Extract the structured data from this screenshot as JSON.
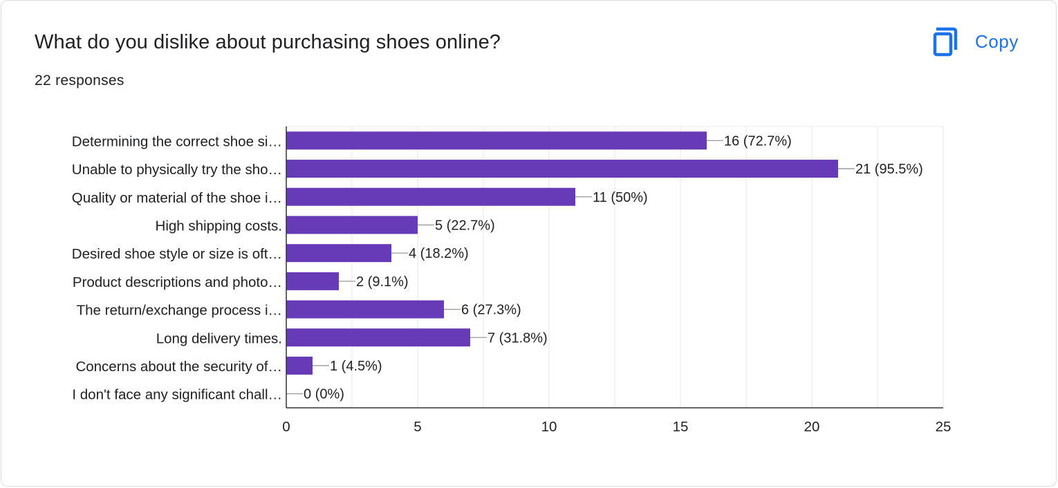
{
  "card": {
    "title": "What do you dislike about purchasing shoes online?",
    "responses": "22 responses",
    "copy_label": "Copy",
    "copy_icon": "content-copy-icon"
  },
  "colors": {
    "bar": "#673ab7",
    "accent": "#1a73e8",
    "text": "#202124",
    "grid": "#ebebeb",
    "axis": "#333333",
    "connector": "#999999"
  },
  "chart_data": {
    "type": "bar",
    "orientation": "horizontal",
    "categories": [
      "Determining the correct shoe si…",
      "Unable to physically try the sho…",
      "Quality or material of the shoe i…",
      "High shipping costs.",
      "Desired shoe style or size is oft…",
      "Product descriptions and photo…",
      "The return/exchange process i…",
      "Long delivery times.",
      "Concerns about the security of…",
      "I don't face any significant chall…"
    ],
    "values": [
      16,
      21,
      11,
      5,
      4,
      2,
      6,
      7,
      1,
      0
    ],
    "value_labels": [
      "16 (72.7%)",
      "21 (95.5%)",
      "11 (50%)",
      "5 (22.7%)",
      "4 (18.2%)",
      "2 (9.1%)",
      "6 (27.3%)",
      "7 (31.8%)",
      "1 (4.5%)",
      "0 (0%)"
    ],
    "xlim": [
      0,
      25
    ],
    "xticks": [
      0,
      5,
      10,
      15,
      20,
      25
    ],
    "minor_gridlines": true,
    "legend": "none"
  }
}
